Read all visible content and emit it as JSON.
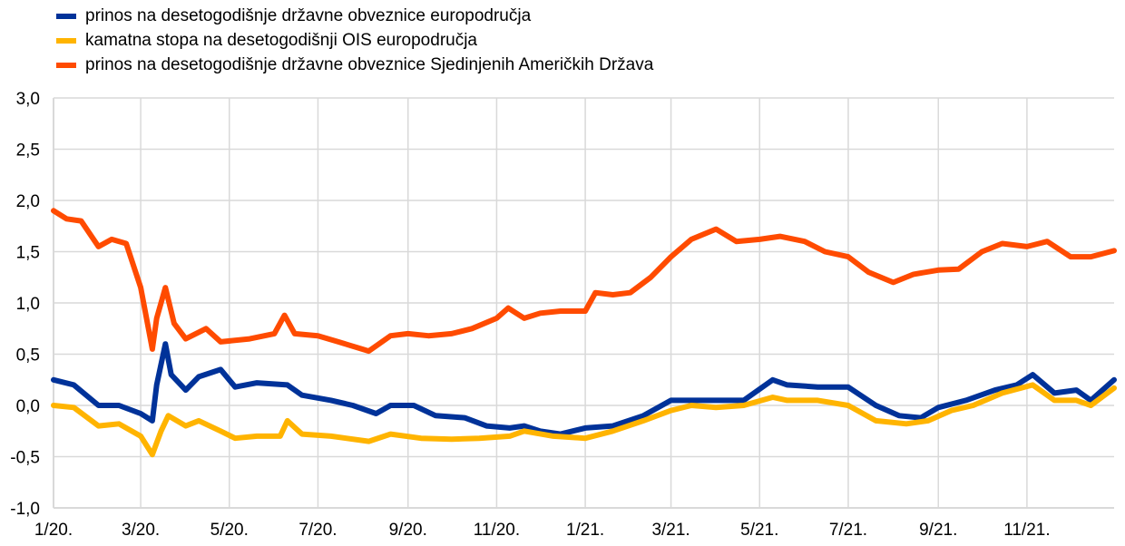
{
  "chart_data": {
    "type": "line",
    "title": "",
    "xlabel": "",
    "ylabel": "",
    "ylim": [
      -1.0,
      3.0
    ],
    "yticks": [
      "-1,0",
      "-0,5",
      "0,0",
      "0,5",
      "1,0",
      "1,5",
      "2,0",
      "2,5",
      "3,0"
    ],
    "xlim": [
      "2020-01-01",
      "2021-12-31"
    ],
    "xticks": [
      {
        "date": "2020-01-01",
        "label": "1/20."
      },
      {
        "date": "2020-03-01",
        "label": "3/20."
      },
      {
        "date": "2020-05-01",
        "label": "5/20."
      },
      {
        "date": "2020-07-01",
        "label": "7/20."
      },
      {
        "date": "2020-09-01",
        "label": "9/20."
      },
      {
        "date": "2020-11-01",
        "label": "11/20."
      },
      {
        "date": "2021-01-01",
        "label": "1/21."
      },
      {
        "date": "2021-03-01",
        "label": "3/21."
      },
      {
        "date": "2021-05-01",
        "label": "5/21."
      },
      {
        "date": "2021-07-01",
        "label": "7/21."
      },
      {
        "date": "2021-09-01",
        "label": "9/21."
      },
      {
        "date": "2021-11-01",
        "label": "11/21."
      }
    ],
    "grid": true,
    "legend_position": "top-left",
    "series": [
      {
        "name": "prinos na desetogodišnje državne obveznice europodručja",
        "color": "#003299",
        "points": [
          [
            "2020-01-01",
            0.25
          ],
          [
            "2020-01-15",
            0.2
          ],
          [
            "2020-02-01",
            0.0
          ],
          [
            "2020-02-15",
            0.0
          ],
          [
            "2020-03-01",
            -0.08
          ],
          [
            "2020-03-09",
            -0.15
          ],
          [
            "2020-03-12",
            0.2
          ],
          [
            "2020-03-18",
            0.6
          ],
          [
            "2020-03-22",
            0.3
          ],
          [
            "2020-04-01",
            0.15
          ],
          [
            "2020-04-10",
            0.28
          ],
          [
            "2020-04-25",
            0.35
          ],
          [
            "2020-05-05",
            0.18
          ],
          [
            "2020-05-20",
            0.22
          ],
          [
            "2020-06-10",
            0.2
          ],
          [
            "2020-06-20",
            0.1
          ],
          [
            "2020-07-10",
            0.05
          ],
          [
            "2020-07-25",
            0.0
          ],
          [
            "2020-08-10",
            -0.08
          ],
          [
            "2020-08-20",
            0.0
          ],
          [
            "2020-09-05",
            0.0
          ],
          [
            "2020-09-20",
            -0.1
          ],
          [
            "2020-10-10",
            -0.12
          ],
          [
            "2020-10-25",
            -0.2
          ],
          [
            "2020-11-10",
            -0.22
          ],
          [
            "2020-11-20",
            -0.2
          ],
          [
            "2020-12-01",
            -0.25
          ],
          [
            "2020-12-15",
            -0.28
          ],
          [
            "2021-01-01",
            -0.22
          ],
          [
            "2021-01-20",
            -0.2
          ],
          [
            "2021-02-10",
            -0.1
          ],
          [
            "2021-03-01",
            0.05
          ],
          [
            "2021-03-15",
            0.05
          ],
          [
            "2021-04-01",
            0.05
          ],
          [
            "2021-04-20",
            0.05
          ],
          [
            "2021-05-10",
            0.25
          ],
          [
            "2021-05-20",
            0.2
          ],
          [
            "2021-06-10",
            0.18
          ],
          [
            "2021-07-01",
            0.18
          ],
          [
            "2021-07-20",
            0.0
          ],
          [
            "2021-08-05",
            -0.1
          ],
          [
            "2021-08-20",
            -0.12
          ],
          [
            "2021-09-01",
            -0.02
          ],
          [
            "2021-09-20",
            0.05
          ],
          [
            "2021-10-10",
            0.15
          ],
          [
            "2021-10-25",
            0.2
          ],
          [
            "2021-11-05",
            0.3
          ],
          [
            "2021-11-20",
            0.12
          ],
          [
            "2021-12-05",
            0.15
          ],
          [
            "2021-12-15",
            0.05
          ],
          [
            "2021-12-31",
            0.25
          ]
        ]
      },
      {
        "name": "kamatna stopa na desetogodišnji OIS europodručja",
        "color": "#FFB400",
        "points": [
          [
            "2020-01-01",
            0.0
          ],
          [
            "2020-01-15",
            -0.02
          ],
          [
            "2020-02-01",
            -0.2
          ],
          [
            "2020-02-15",
            -0.18
          ],
          [
            "2020-03-01",
            -0.3
          ],
          [
            "2020-03-09",
            -0.48
          ],
          [
            "2020-03-15",
            -0.25
          ],
          [
            "2020-03-20",
            -0.1
          ],
          [
            "2020-04-01",
            -0.2
          ],
          [
            "2020-04-10",
            -0.15
          ],
          [
            "2020-04-25",
            -0.25
          ],
          [
            "2020-05-05",
            -0.32
          ],
          [
            "2020-05-20",
            -0.3
          ],
          [
            "2020-06-05",
            -0.3
          ],
          [
            "2020-06-10",
            -0.15
          ],
          [
            "2020-06-20",
            -0.28
          ],
          [
            "2020-07-10",
            -0.3
          ],
          [
            "2020-08-05",
            -0.35
          ],
          [
            "2020-08-20",
            -0.28
          ],
          [
            "2020-09-10",
            -0.32
          ],
          [
            "2020-10-01",
            -0.33
          ],
          [
            "2020-10-20",
            -0.32
          ],
          [
            "2020-11-10",
            -0.3
          ],
          [
            "2020-11-20",
            -0.25
          ],
          [
            "2020-12-10",
            -0.3
          ],
          [
            "2021-01-01",
            -0.32
          ],
          [
            "2021-01-20",
            -0.25
          ],
          [
            "2021-02-10",
            -0.15
          ],
          [
            "2021-03-01",
            -0.05
          ],
          [
            "2021-03-15",
            0.0
          ],
          [
            "2021-04-01",
            -0.02
          ],
          [
            "2021-04-20",
            0.0
          ],
          [
            "2021-05-10",
            0.08
          ],
          [
            "2021-05-20",
            0.05
          ],
          [
            "2021-06-10",
            0.05
          ],
          [
            "2021-07-01",
            0.0
          ],
          [
            "2021-07-20",
            -0.15
          ],
          [
            "2021-08-10",
            -0.18
          ],
          [
            "2021-08-25",
            -0.15
          ],
          [
            "2021-09-10",
            -0.05
          ],
          [
            "2021-09-25",
            0.0
          ],
          [
            "2021-10-15",
            0.12
          ],
          [
            "2021-11-05",
            0.2
          ],
          [
            "2021-11-20",
            0.05
          ],
          [
            "2021-12-05",
            0.05
          ],
          [
            "2021-12-15",
            0.0
          ],
          [
            "2021-12-31",
            0.17
          ]
        ]
      },
      {
        "name": "prinos na desetogodišnje državne obveznice Sjedinjenih Američkih Država",
        "color": "#FF4B00",
        "points": [
          [
            "2020-01-01",
            1.9
          ],
          [
            "2020-01-10",
            1.82
          ],
          [
            "2020-01-20",
            1.8
          ],
          [
            "2020-02-01",
            1.55
          ],
          [
            "2020-02-10",
            1.62
          ],
          [
            "2020-02-20",
            1.58
          ],
          [
            "2020-03-01",
            1.15
          ],
          [
            "2020-03-09",
            0.55
          ],
          [
            "2020-03-12",
            0.85
          ],
          [
            "2020-03-18",
            1.15
          ],
          [
            "2020-03-24",
            0.8
          ],
          [
            "2020-04-01",
            0.65
          ],
          [
            "2020-04-15",
            0.75
          ],
          [
            "2020-04-25",
            0.62
          ],
          [
            "2020-05-15",
            0.65
          ],
          [
            "2020-06-01",
            0.7
          ],
          [
            "2020-06-08",
            0.88
          ],
          [
            "2020-06-15",
            0.7
          ],
          [
            "2020-07-01",
            0.68
          ],
          [
            "2020-07-15",
            0.62
          ],
          [
            "2020-08-05",
            0.53
          ],
          [
            "2020-08-20",
            0.68
          ],
          [
            "2020-09-01",
            0.7
          ],
          [
            "2020-09-15",
            0.68
          ],
          [
            "2020-10-01",
            0.7
          ],
          [
            "2020-10-15",
            0.75
          ],
          [
            "2020-11-01",
            0.85
          ],
          [
            "2020-11-09",
            0.95
          ],
          [
            "2020-11-20",
            0.85
          ],
          [
            "2020-12-01",
            0.9
          ],
          [
            "2020-12-15",
            0.92
          ],
          [
            "2021-01-01",
            0.92
          ],
          [
            "2021-01-08",
            1.1
          ],
          [
            "2021-01-20",
            1.08
          ],
          [
            "2021-02-01",
            1.1
          ],
          [
            "2021-02-15",
            1.25
          ],
          [
            "2021-03-01",
            1.45
          ],
          [
            "2021-03-15",
            1.62
          ],
          [
            "2021-04-01",
            1.72
          ],
          [
            "2021-04-15",
            1.6
          ],
          [
            "2021-05-01",
            1.62
          ],
          [
            "2021-05-15",
            1.65
          ],
          [
            "2021-06-01",
            1.6
          ],
          [
            "2021-06-15",
            1.5
          ],
          [
            "2021-07-01",
            1.45
          ],
          [
            "2021-07-15",
            1.3
          ],
          [
            "2021-08-01",
            1.2
          ],
          [
            "2021-08-15",
            1.28
          ],
          [
            "2021-09-01",
            1.32
          ],
          [
            "2021-09-15",
            1.33
          ],
          [
            "2021-10-01",
            1.5
          ],
          [
            "2021-10-15",
            1.58
          ],
          [
            "2021-11-01",
            1.55
          ],
          [
            "2021-11-15",
            1.6
          ],
          [
            "2021-12-01",
            1.45
          ],
          [
            "2021-12-15",
            1.45
          ],
          [
            "2021-12-31",
            1.51
          ]
        ]
      }
    ]
  }
}
